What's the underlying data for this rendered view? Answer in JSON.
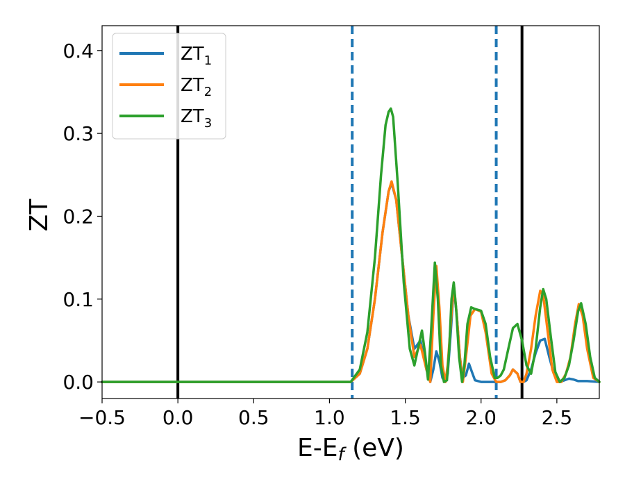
{
  "chart_data": {
    "type": "line",
    "title": "",
    "xlabel": {
      "main": "E-E",
      "subscript": "f",
      "suffix": " (eV)"
    },
    "ylabel": "ZT",
    "xlim": [
      -0.5,
      2.78
    ],
    "ylim": [
      -0.02,
      0.43
    ],
    "xticks": [
      -0.5,
      0.0,
      0.5,
      1.0,
      1.5,
      2.0,
      2.5
    ],
    "xtick_labels": [
      "−0.5",
      "0.0",
      "0.5",
      "1.0",
      "1.5",
      "2.0",
      "2.5"
    ],
    "yticks": [
      0.0,
      0.1,
      0.2,
      0.3,
      0.4
    ],
    "ytick_labels": [
      "0.0",
      "0.1",
      "0.2",
      "0.3",
      "0.4"
    ],
    "grid": false,
    "legend_position": "top-left",
    "vlines": [
      {
        "x": 0.0,
        "style": "solid",
        "color": "#000000"
      },
      {
        "x": 1.15,
        "style": "dashed",
        "color": "#1f77b4"
      },
      {
        "x": 2.1,
        "style": "dashed",
        "color": "#1f77b4"
      },
      {
        "x": 2.27,
        "style": "solid",
        "color": "#000000"
      }
    ],
    "series": [
      {
        "name": "ZT",
        "subscript": "1",
        "color": "#1f77b4",
        "x": [
          -0.5,
          1.14,
          1.2,
          1.25,
          1.3,
          1.35,
          1.39,
          1.41,
          1.44,
          1.48,
          1.52,
          1.56,
          1.6,
          1.64,
          1.665,
          1.685,
          1.705,
          1.725,
          1.745,
          1.765,
          1.78,
          1.8,
          1.82,
          1.84,
          1.86,
          1.88,
          1.9,
          1.92,
          1.94,
          1.96,
          2.0,
          2.05,
          2.08,
          2.1,
          2.13,
          2.16,
          2.19,
          2.21,
          2.24,
          2.26,
          2.28,
          2.3,
          2.33,
          2.36,
          2.39,
          2.42,
          2.45,
          2.48,
          2.52,
          2.55,
          2.58,
          2.61,
          2.64,
          2.7,
          2.78
        ],
        "y": [
          0.0,
          0.0,
          0.01,
          0.04,
          0.1,
          0.18,
          0.23,
          0.24,
          0.22,
          0.15,
          0.08,
          0.04,
          0.05,
          0.015,
          0.0,
          0.015,
          0.037,
          0.025,
          0.005,
          0.0,
          0.01,
          0.06,
          0.115,
          0.08,
          0.03,
          0.005,
          0.008,
          0.022,
          0.012,
          0.002,
          0.0,
          0.0,
          0.0,
          0.0,
          0.0,
          0.002,
          0.008,
          0.015,
          0.01,
          0.0,
          0.0,
          0.002,
          0.015,
          0.035,
          0.05,
          0.052,
          0.03,
          0.01,
          0.0,
          0.002,
          0.004,
          0.003,
          0.001,
          0.001,
          0.0
        ]
      },
      {
        "name": "ZT",
        "subscript": "2",
        "color": "#ff7f0e",
        "x": [
          -0.5,
          1.14,
          1.2,
          1.25,
          1.3,
          1.35,
          1.39,
          1.41,
          1.44,
          1.48,
          1.52,
          1.56,
          1.6,
          1.64,
          1.665,
          1.685,
          1.705,
          1.725,
          1.745,
          1.765,
          1.78,
          1.8,
          1.82,
          1.84,
          1.86,
          1.88,
          1.9,
          1.93,
          1.96,
          2.0,
          2.03,
          2.07,
          2.1,
          2.13,
          2.16,
          2.19,
          2.21,
          2.24,
          2.26,
          2.28,
          2.3,
          2.33,
          2.36,
          2.39,
          2.41,
          2.44,
          2.47,
          2.5,
          2.53,
          2.56,
          2.59,
          2.62,
          2.645,
          2.67,
          2.7,
          2.74,
          2.78
        ],
        "y": [
          0.0,
          0.0,
          0.01,
          0.04,
          0.1,
          0.18,
          0.23,
          0.242,
          0.22,
          0.15,
          0.08,
          0.03,
          0.045,
          0.015,
          0.0,
          0.08,
          0.14,
          0.09,
          0.02,
          0.0,
          0.02,
          0.07,
          0.118,
          0.08,
          0.03,
          0.0,
          0.03,
          0.08,
          0.088,
          0.085,
          0.06,
          0.01,
          0.0,
          0.0,
          0.002,
          0.008,
          0.015,
          0.01,
          0.0,
          0.0,
          0.01,
          0.04,
          0.08,
          0.11,
          0.105,
          0.06,
          0.015,
          0.0,
          0.0,
          0.01,
          0.03,
          0.07,
          0.094,
          0.08,
          0.04,
          0.005,
          0.0
        ]
      },
      {
        "name": "ZT",
        "subscript": "3",
        "color": "#2ca02c",
        "x": [
          -0.5,
          1.14,
          1.2,
          1.25,
          1.3,
          1.34,
          1.37,
          1.39,
          1.405,
          1.42,
          1.45,
          1.49,
          1.53,
          1.56,
          1.59,
          1.61,
          1.63,
          1.65,
          1.67,
          1.695,
          1.715,
          1.735,
          1.755,
          1.775,
          1.79,
          1.805,
          1.82,
          1.835,
          1.855,
          1.875,
          1.89,
          1.91,
          1.935,
          1.96,
          2.0,
          2.03,
          2.06,
          2.09,
          2.11,
          2.13,
          2.15,
          2.18,
          2.21,
          2.24,
          2.27,
          2.3,
          2.33,
          2.36,
          2.39,
          2.41,
          2.43,
          2.46,
          2.49,
          2.52,
          2.55,
          2.58,
          2.61,
          2.64,
          2.66,
          2.69,
          2.72,
          2.75,
          2.78
        ],
        "y": [
          0.0,
          0.0,
          0.015,
          0.06,
          0.15,
          0.25,
          0.31,
          0.326,
          0.33,
          0.32,
          0.24,
          0.12,
          0.04,
          0.02,
          0.045,
          0.062,
          0.035,
          0.003,
          0.06,
          0.144,
          0.1,
          0.02,
          0.0,
          0.002,
          0.04,
          0.1,
          0.12,
          0.09,
          0.03,
          0.0,
          0.02,
          0.07,
          0.09,
          0.088,
          0.086,
          0.07,
          0.03,
          0.005,
          0.005,
          0.008,
          0.015,
          0.04,
          0.065,
          0.07,
          0.05,
          0.02,
          0.01,
          0.04,
          0.09,
          0.112,
          0.1,
          0.055,
          0.012,
          0.0,
          0.005,
          0.02,
          0.05,
          0.085,
          0.095,
          0.07,
          0.03,
          0.005,
          0.0
        ]
      }
    ]
  }
}
